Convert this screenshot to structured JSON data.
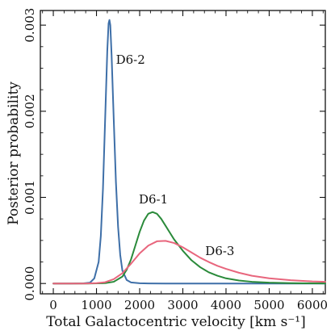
{
  "chart_data": {
    "type": "line",
    "xlabel": "Total Galactocentric velocity [km s⁻¹]",
    "ylabel": "Posterior probability",
    "xlim": [
      -300,
      6300
    ],
    "ylim": [
      -0.00012,
      0.00317
    ],
    "xticks": [
      0,
      1000,
      2000,
      3000,
      4000,
      5000,
      6000
    ],
    "yticks": [
      0.0,
      0.001,
      0.002,
      0.003
    ],
    "ytick_labels": [
      "0.000",
      "0.001",
      "0.002",
      "0.003"
    ],
    "grid": false,
    "legend": "none",
    "series": [
      {
        "name": "D6-2",
        "color": "#3e6fa8",
        "label_anchor": [
          1450,
          0.00255
        ],
        "x": [
          0,
          400,
          700,
          850,
          950,
          1050,
          1100,
          1150,
          1200,
          1250,
          1280,
          1300,
          1320,
          1350,
          1400,
          1450,
          1500,
          1550,
          1600,
          1700,
          1800,
          2000,
          2200,
          2600,
          3000,
          4000,
          5000,
          6000,
          6300
        ],
        "y": [
          0.0,
          0.0,
          2e-06,
          1e-05,
          6e-05,
          0.00025,
          0.00055,
          0.0011,
          0.0019,
          0.0027,
          0.00302,
          0.00306,
          0.003,
          0.00265,
          0.0019,
          0.00118,
          0.00066,
          0.00033,
          0.00015,
          4e-05,
          1.2e-05,
          3e-06,
          1e-06,
          0.0,
          0.0,
          0.0,
          0.0,
          0.0,
          0.0
        ]
      },
      {
        "name": "D6-1",
        "color": "#2a8a3a",
        "label_anchor": [
          1980,
          0.00093
        ],
        "x": [
          0,
          800,
          1200,
          1400,
          1600,
          1700,
          1800,
          1900,
          2000,
          2100,
          2200,
          2300,
          2400,
          2500,
          2600,
          2700,
          2800,
          3000,
          3200,
          3400,
          3600,
          3800,
          4000,
          4300,
          4600,
          5000,
          5500,
          6000,
          6300
        ],
        "y": [
          0.0,
          0.0,
          4e-06,
          2e-05,
          8e-05,
          0.00016,
          0.00028,
          0.00044,
          0.0006,
          0.00073,
          0.00081,
          0.00083,
          0.00081,
          0.00075,
          0.00067,
          0.00059,
          0.00051,
          0.00038,
          0.00027,
          0.00019,
          0.00013,
          9e-05,
          6e-05,
          3.5e-05,
          2e-05,
          1e-05,
          4e-06,
          2e-06,
          1e-06
        ]
      },
      {
        "name": "D6-3",
        "color": "#e8667d",
        "label_anchor": [
          3520,
          0.00033
        ],
        "x": [
          0,
          700,
          1000,
          1200,
          1400,
          1600,
          1800,
          2000,
          2200,
          2400,
          2600,
          2800,
          3000,
          3200,
          3400,
          3600,
          3800,
          4000,
          4300,
          4600,
          5000,
          5500,
          6000,
          6300
        ],
        "y": [
          0.0,
          0.0,
          4e-06,
          1.5e-05,
          5e-05,
          0.00012,
          0.00023,
          0.00035,
          0.00044,
          0.00049,
          0.000495,
          0.00047,
          0.00042,
          0.00036,
          0.0003,
          0.00025,
          0.000205,
          0.00017,
          0.000125,
          9e-05,
          6e-05,
          3.8e-05,
          2.4e-05,
          1.9e-05
        ]
      }
    ]
  }
}
